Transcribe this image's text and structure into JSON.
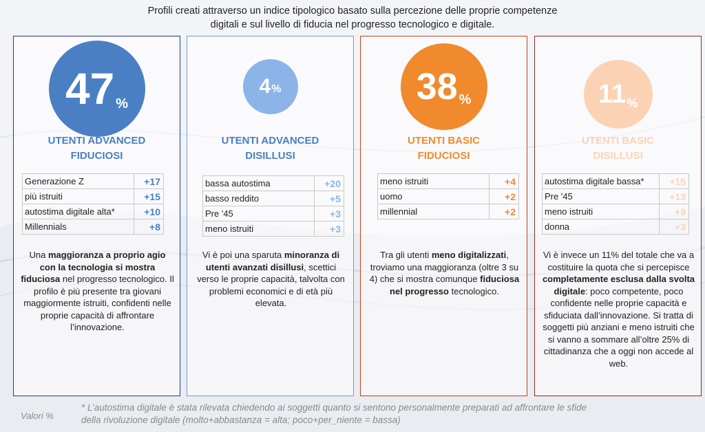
{
  "header": {
    "line1": "Profili creati attraverso un indice tipologico basato sulla percezione delle proprie competenze",
    "line2": "digitali e sul livello di fiducia nel progresso tecnologico e digitale."
  },
  "cards": [
    {
      "value": "47",
      "pct": "%",
      "title1": "UTENTI ADVANCED",
      "title2": "FIDUCIOSI",
      "color": "#4a7fc3",
      "metrics": [
        {
          "label": "Generazione Z",
          "value": "+17"
        },
        {
          "label": "più istruiti",
          "value": "+15"
        },
        {
          "label": "autostima digitale alta*",
          "value": "+10"
        },
        {
          "label": "Millennials",
          "value": "+8"
        }
      ],
      "desc": [
        {
          "t": "Una ",
          "b": false
        },
        {
          "t": "maggioranza a proprio agio con la tecnologia si mostra fiduciosa",
          "b": true
        },
        {
          "t": " nel progresso tecnologico. Il profilo è più presente tra giovani maggiormente istruiti, confidenti nelle proprie capacità di affrontare l’innovazione.",
          "b": false
        }
      ]
    },
    {
      "value": "4",
      "pct": "%",
      "title1": "UTENTI ADVANCED",
      "title2": "DISILLUSI",
      "color": "#8db4e8",
      "metrics": [
        {
          "label": "bassa autostima",
          "value": "+20"
        },
        {
          "label": "basso reddito",
          "value": "+5"
        },
        {
          "label": "Pre '45",
          "value": "+3"
        },
        {
          "label": "meno istruiti",
          "value": "+3"
        }
      ],
      "desc": [
        {
          "t": "Vi è poi una sparuta ",
          "b": false
        },
        {
          "t": "minoranza di utenti avanzati disillusi",
          "b": true
        },
        {
          "t": ", scettici verso le proprie capacità, talvolta con problemi economici e di età più elevata.",
          "b": false
        }
      ]
    },
    {
      "value": "38",
      "pct": "%",
      "title1": "UTENTI BASIC",
      "title2": "FIDUCIOSI",
      "color": "#f08a2c",
      "metrics": [
        {
          "label": "meno istruiti",
          "value": "+4"
        },
        {
          "label": "uomo",
          "value": "+2"
        },
        {
          "label": "millennial",
          "value": "+2"
        }
      ],
      "desc": [
        {
          "t": "Tra gli utenti ",
          "b": false
        },
        {
          "t": "meno digitalizzati",
          "b": true
        },
        {
          "t": ", troviamo una maggioranza (oltre 3 su 4) che si mostra comunque ",
          "b": false
        },
        {
          "t": "fiduciosa nel progresso",
          "b": true
        },
        {
          "t": " tecnologico.",
          "b": false
        }
      ]
    },
    {
      "value": "11",
      "pct": "%",
      "title1": "UTENTI BASIC",
      "title2": "DISILLUSI",
      "color": "#fbd3b4",
      "metrics": [
        {
          "label": "autostima digitale bassa*",
          "value": "+15"
        },
        {
          "label": "Pre '45",
          "value": "+13"
        },
        {
          "label": "meno istruiti",
          "value": "+9"
        },
        {
          "label": "donna",
          "value": "+3"
        }
      ],
      "desc": [
        {
          "t": "Vi è invece un 11% del totale che va a costituire la quota che si percepisce ",
          "b": false
        },
        {
          "t": "completamente esclusa dalla svolta digitale",
          "b": true
        },
        {
          "t": ": poco competente, poco confidente nelle proprie capacità e sfiduciata dall’innovazione. Si tratta di soggetti più anziani e meno istruiti che si vanno a sommare all’oltre 25% di cittadinanza che a oggi non accede al web.",
          "b": false
        }
      ]
    }
  ],
  "footer": {
    "left": "Valori %",
    "note1": "* L’autostima digitale è stata rilevata chiedendo ai soggetti quanto si sentono personalmente preparati ad affrontare le sfide",
    "note2": "della rivoluzione digitale (molto+abbastanza = alta; poco+per_niente = bassa)"
  }
}
